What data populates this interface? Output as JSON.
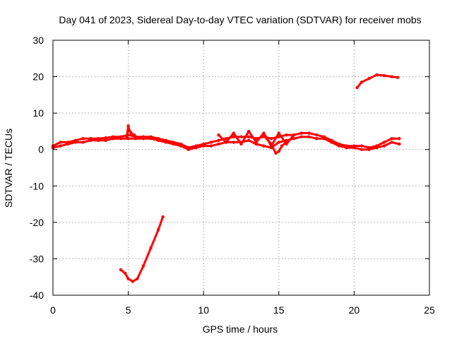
{
  "chart_data": {
    "type": "line",
    "title": "Day 041 of 2023, Sidereal Day-to-day VTEC variation (SDTVAR) for receiver mobs",
    "xlabel": "GPS time / hours",
    "ylabel": "SDTVAR / TECUs",
    "xlim": [
      0,
      25
    ],
    "ylim": [
      -40,
      30
    ],
    "xticks": [
      0,
      5,
      10,
      15,
      20,
      25
    ],
    "yticks": [
      -40,
      -30,
      -20,
      -10,
      0,
      10,
      20,
      30
    ],
    "grid": true,
    "color": "#ff0000",
    "series": [
      {
        "name": "band-main-a",
        "x": [
          0,
          0.5,
          1,
          1.5,
          2,
          2.5,
          3,
          3.5,
          4,
          4.5,
          5,
          5.5,
          6,
          6.5,
          7,
          7.5,
          8,
          8.5,
          9,
          9.5,
          10,
          10.5,
          11,
          11.5,
          12,
          12.5,
          13,
          13.5,
          14,
          14.5,
          15,
          15.5,
          16,
          16.5,
          17,
          17.5,
          18,
          18.5,
          19,
          19.5,
          20,
          20.5,
          21,
          21.5,
          22,
          22.5,
          23
        ],
        "y": [
          1,
          2,
          2,
          2.5,
          3,
          3,
          3,
          3.2,
          3.5,
          3.5,
          4,
          3.5,
          3.5,
          3.5,
          3,
          2.5,
          2,
          1.5,
          0.5,
          1,
          1.5,
          2,
          2.5,
          3,
          3.5,
          3.5,
          3.5,
          3,
          3.5,
          3,
          3.5,
          4,
          4,
          4.5,
          4.5,
          4,
          3.5,
          2.5,
          1.5,
          1,
          1,
          1,
          0.5,
          1,
          2,
          3,
          3
        ]
      },
      {
        "name": "band-main-b",
        "x": [
          0,
          0.5,
          1,
          1.5,
          2,
          2.5,
          3,
          3.5,
          4,
          4.5,
          5,
          5.5,
          6,
          6.5,
          7,
          7.5,
          8,
          8.5,
          9,
          9.5,
          10,
          10.5,
          11,
          11.5,
          12,
          12.5,
          13,
          13.5,
          14,
          14.5,
          15,
          15.5,
          16,
          16.5,
          17,
          17.5,
          18,
          18.5,
          19,
          19.5,
          20,
          20.5,
          21,
          21.5,
          22,
          22.5,
          23
        ],
        "y": [
          0.5,
          1,
          1.5,
          2,
          2,
          2.5,
          2.5,
          2.5,
          3,
          3,
          3,
          3,
          3,
          3,
          2.5,
          2,
          1.5,
          1,
          0,
          0.5,
          1,
          1,
          1.5,
          2,
          2,
          2,
          2.5,
          1.5,
          1,
          0.5,
          2,
          2.5,
          3,
          3.5,
          3.5,
          3,
          3,
          2,
          1,
          0.5,
          0.5,
          0,
          0,
          0.5,
          1,
          2,
          1.5
        ]
      },
      {
        "name": "band-spike-5h",
        "x": [
          4.9,
          5.0,
          5.1,
          5.2,
          5.3,
          5.4
        ],
        "y": [
          3.5,
          6.5,
          5,
          4.5,
          4,
          4
        ]
      },
      {
        "name": "band-dip-15h",
        "x": [
          14.2,
          14.5,
          14.8,
          15.0,
          15.2,
          15.5
        ],
        "y": [
          3,
          1.5,
          -1,
          -0.5,
          1,
          2
        ]
      },
      {
        "name": "band-wiggles",
        "x": [
          11,
          11.5,
          12,
          12.5,
          13,
          13.5,
          14,
          14.5,
          15,
          15.5,
          16
        ],
        "y": [
          4,
          2,
          4.5,
          1.5,
          5,
          2,
          4.5,
          1,
          4.5,
          1.5,
          4
        ]
      },
      {
        "name": "band-upper-late",
        "x": [
          20.2,
          20.5,
          21,
          21.5,
          22,
          22.5,
          22.9
        ],
        "y": [
          17,
          18.5,
          19.5,
          20.5,
          20.3,
          20,
          19.8
        ]
      },
      {
        "name": "band-lower-dip",
        "x": [
          4.5,
          4.8,
          5.0,
          5.3,
          5.6,
          6.0,
          6.5,
          7.0,
          7.3
        ],
        "y": [
          -33,
          -34,
          -35.5,
          -36.2,
          -35.5,
          -32,
          -27,
          -22,
          -18.5
        ]
      }
    ]
  }
}
